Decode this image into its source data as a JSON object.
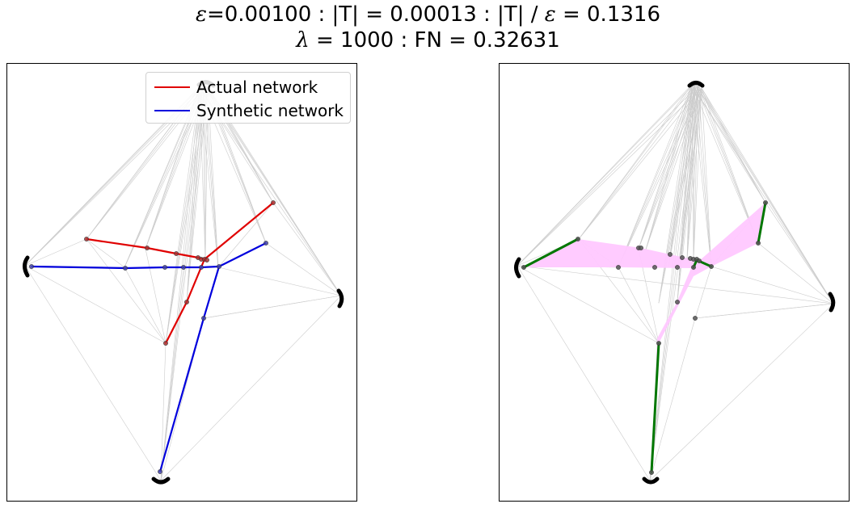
{
  "title": {
    "line1": {
      "eps_sym": "ε",
      "eps_val": "=0.00100 : |T| = 0.00013 : |T| / ",
      "eps_sym2": "ε",
      "ratio": " = 0.1316"
    },
    "line2": {
      "lambda_sym": "λ",
      "rest": " = 1000 : FN = 0.32631"
    }
  },
  "legend": {
    "items": [
      {
        "label": "Actual network",
        "color": "#e00000"
      },
      {
        "label": "Synthetic network",
        "color": "#0000dd"
      }
    ]
  },
  "colors": {
    "actual": "#e00000",
    "synthetic": "#0000dd",
    "match": "#007700",
    "band": "#ffc8ff",
    "node": "#555555",
    "terminal": "#000000",
    "background_edge": "#cccccc"
  }
}
